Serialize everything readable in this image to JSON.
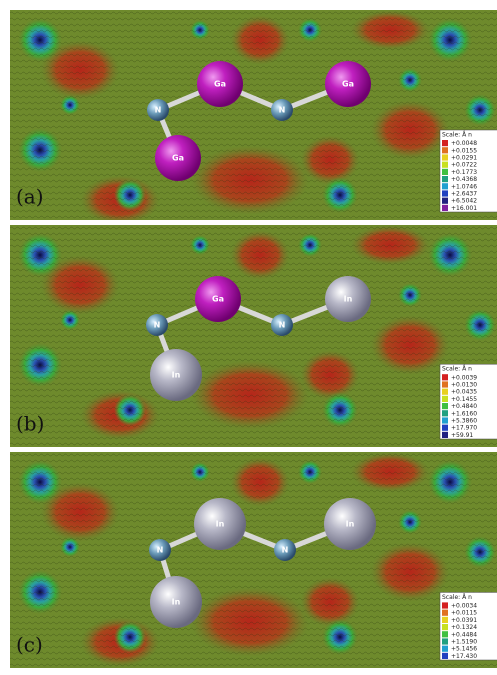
{
  "panels": [
    {
      "label": "(a)",
      "atoms": [
        "N",
        "Ga",
        "N",
        "Ga",
        "Ga"
      ],
      "scale": {
        "title": "Scale: Å n",
        "values": [
          "+0.0048",
          "+0.0155",
          "+0.0291",
          "+0.0722",
          "+0.1773",
          "+0.4368",
          "+1.0746",
          "+2.6437",
          "+6.5042",
          "+16.001"
        ]
      }
    },
    {
      "label": "(b)",
      "atoms": [
        "N",
        "Ga",
        "N",
        "In",
        "In"
      ],
      "scale": {
        "title": "Scale: Å n",
        "values": [
          "+0.0039",
          "+0.0130",
          "+0.0435",
          "+0.1455",
          "+0.4840",
          "+1.6160",
          "+5.3860",
          "+17.970",
          "+59.91"
        ]
      }
    },
    {
      "label": "(c)",
      "atoms": [
        "N",
        "In",
        "N",
        "In",
        "In"
      ],
      "scale": {
        "title": "Scale: Å n",
        "values": [
          "+0.0034",
          "+0.0115",
          "+0.0391",
          "+0.1324",
          "+0.4484",
          "+1.5190",
          "+5.1456",
          "+17.430"
        ]
      }
    }
  ]
}
